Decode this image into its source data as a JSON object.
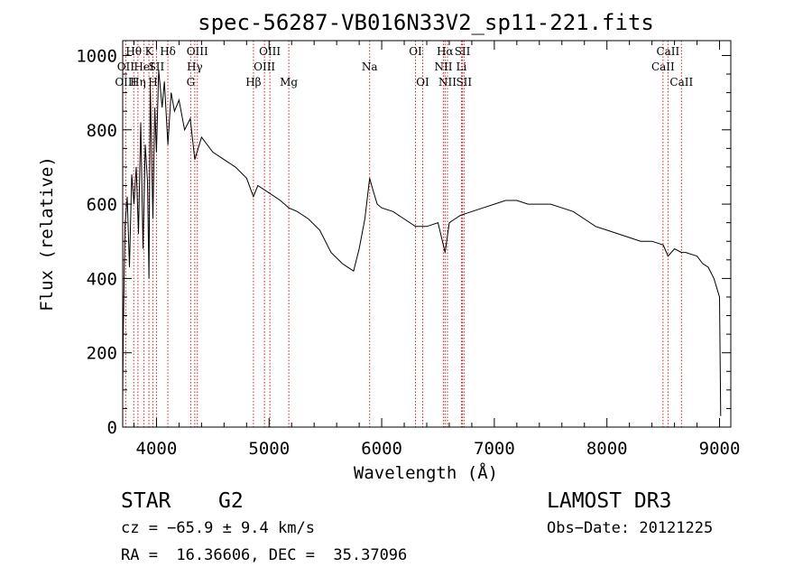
{
  "chart_data": {
    "type": "line",
    "title": "spec-56287-VB016N33V2_sp11-221.fits",
    "xlabel": "Wavelength (Å)",
    "ylabel": "Flux (relative)",
    "xlim": [
      3700,
      9100
    ],
    "ylim": [
      0,
      1040
    ],
    "x_ticks": [
      4000,
      5000,
      6000,
      7000,
      8000,
      9000
    ],
    "y_ticks": [
      0,
      200,
      400,
      600,
      800,
      1000
    ],
    "grid": false,
    "series": [
      {
        "x": [
          3700,
          3705,
          3720,
          3740,
          3760,
          3780,
          3800,
          3820,
          3840,
          3860,
          3880,
          3900,
          3920,
          3933,
          3945,
          3968,
          3985,
          4000,
          4020,
          4050,
          4070,
          4101,
          4130,
          4160,
          4200,
          4250,
          4300,
          4340,
          4400,
          4450,
          4500,
          4600,
          4700,
          4800,
          4861,
          4900,
          5000,
          5100,
          5175,
          5250,
          5350,
          5450,
          5550,
          5650,
          5750,
          5800,
          5850,
          5893,
          5920,
          5960,
          6000,
          6100,
          6200,
          6300,
          6400,
          6500,
          6563,
          6600,
          6650,
          6700,
          6800,
          6900,
          7000,
          7100,
          7200,
          7300,
          7400,
          7500,
          7600,
          7700,
          7800,
          7900,
          8000,
          8100,
          8200,
          8300,
          8400,
          8500,
          8542,
          8600,
          8662,
          8700,
          8800,
          8850,
          8900,
          8950,
          8980,
          9000,
          9010
        ],
        "y": [
          80,
          250,
          540,
          620,
          430,
          680,
          600,
          700,
          520,
          820,
          480,
          760,
          660,
          400,
          920,
          560,
          860,
          740,
          960,
          860,
          930,
          760,
          900,
          850,
          880,
          800,
          830,
          720,
          780,
          760,
          740,
          720,
          700,
          670,
          620,
          650,
          630,
          610,
          590,
          580,
          560,
          530,
          470,
          440,
          420,
          480,
          560,
          670,
          640,
          600,
          590,
          580,
          560,
          540,
          540,
          550,
          470,
          550,
          560,
          570,
          580,
          590,
          600,
          610,
          610,
          600,
          600,
          600,
          590,
          580,
          560,
          540,
          530,
          520,
          510,
          500,
          500,
          490,
          460,
          480,
          470,
          470,
          460,
          440,
          430,
          400,
          370,
          350,
          30
        ]
      }
    ],
    "line_markers": [
      {
        "label": "Hθ",
        "x": 3798,
        "row": 0
      },
      {
        "label": "OII",
        "x": 3727,
        "row": 1
      },
      {
        "label": "OIII",
        "x": 3727,
        "row": 2
      },
      {
        "label": "Hη",
        "x": 3835,
        "row": 2
      },
      {
        "label": "HeI",
        "x": 3889,
        "row": 1
      },
      {
        "label": "K",
        "x": 3933,
        "row": 0
      },
      {
        "label": "SII",
        "x": 4000,
        "row": 1
      },
      {
        "label": "H",
        "x": 3968,
        "row": 2
      },
      {
        "label": "Hδ",
        "x": 4101,
        "row": 0
      },
      {
        "label": "OIII",
        "x": 4363,
        "row": 0
      },
      {
        "label": "Hγ",
        "x": 4340,
        "row": 1
      },
      {
        "label": "G",
        "x": 4304,
        "row": 2
      },
      {
        "label": "Hβ",
        "x": 4861,
        "row": 2
      },
      {
        "label": "OIII",
        "x": 5007,
        "row": 0
      },
      {
        "label": "OIII",
        "x": 4959,
        "row": 1
      },
      {
        "label": "Mg",
        "x": 5175,
        "row": 2
      },
      {
        "label": "Na",
        "x": 5893,
        "row": 1
      },
      {
        "label": "OI",
        "x": 6300,
        "row": 0
      },
      {
        "label": "OI",
        "x": 6364,
        "row": 2
      },
      {
        "label": "Hα",
        "x": 6563,
        "row": 0
      },
      {
        "label": "NII",
        "x": 6548,
        "row": 1
      },
      {
        "label": "NII",
        "x": 6584,
        "row": 2
      },
      {
        "label": "SII",
        "x": 6717,
        "row": 0
      },
      {
        "label": "Li",
        "x": 6708,
        "row": 1
      },
      {
        "label": "SII",
        "x": 6731,
        "row": 2
      },
      {
        "label": "CaII",
        "x": 8542,
        "row": 0
      },
      {
        "label": "CaII",
        "x": 8498,
        "row": 1
      },
      {
        "label": "CaII",
        "x": 8662,
        "row": 2
      }
    ]
  },
  "info": {
    "object_class": "STAR",
    "subclass": "G2",
    "survey": "LAMOST DR3",
    "cz": "cz = −65.9 ± 9.4 km/s",
    "obs_date": "Obs−Date: 20121225",
    "coords": "RA =  16.36606, DEC =  35.37096"
  }
}
